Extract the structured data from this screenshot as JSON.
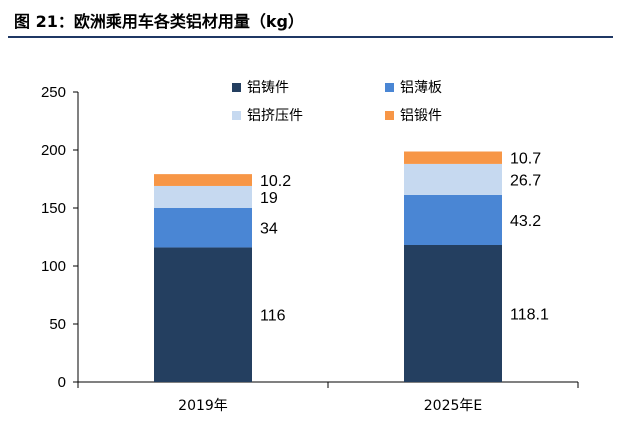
{
  "title": "图 21：欧洲乘用车各类铝材用量（kg）",
  "chart_data": {
    "type": "bar",
    "stacked": true,
    "categories": [
      "2019年",
      "2025年E"
    ],
    "series": [
      {
        "name": "铝铸件",
        "values": [
          116,
          118.1
        ],
        "color": "#243f60",
        "labels": [
          "116",
          "118.1"
        ]
      },
      {
        "name": "铝薄板",
        "values": [
          34,
          43.2
        ],
        "color": "#4a86d4",
        "labels": [
          "34",
          "43.2"
        ]
      },
      {
        "name": "铝挤压件",
        "values": [
          19,
          26.7
        ],
        "color": "#c6d9f0",
        "labels": [
          "19",
          "26.7"
        ]
      },
      {
        "name": "铝锻件",
        "values": [
          10.2,
          10.7
        ],
        "color": "#f79646",
        "labels": [
          "10.2",
          "10.7"
        ]
      }
    ],
    "yticks": [
      "0",
      "50",
      "100",
      "150",
      "200",
      "250"
    ],
    "ylim": [
      0,
      250
    ],
    "legend_position": "top"
  }
}
